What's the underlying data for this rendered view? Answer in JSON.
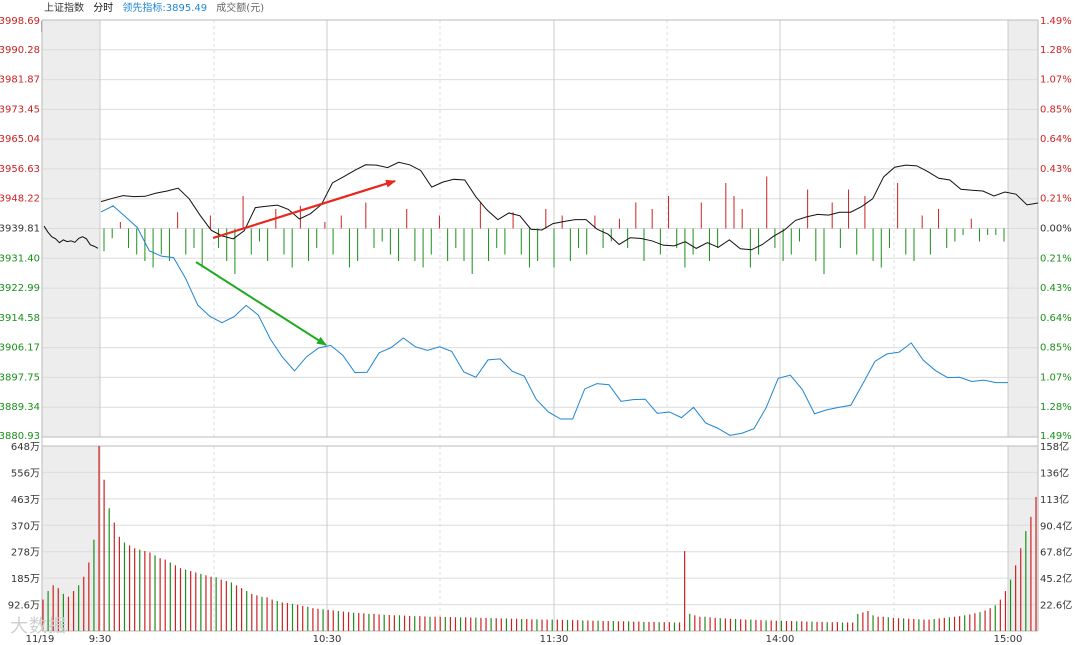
{
  "header": {
    "title": "上证指数",
    "mode": "分时",
    "lead_label": "领先指标:",
    "lead_value": "3895.49",
    "volume_label": "成交额(元)"
  },
  "logo_text": "大数据",
  "colors": {
    "up": "#cc2222",
    "down": "#1a8f1a",
    "price_line": "#111111",
    "lead_line": "#1f86d1",
    "grid": "#dcdcdc",
    "shade": "#ededed",
    "arrow_up": "#e8281e",
    "arrow_down": "#22aa22"
  },
  "chart_data": {
    "type": "line",
    "x_labels": [
      "11/19",
      "9:30",
      "10:30",
      "11:30",
      "14:00",
      "15:00"
    ],
    "price_axis": {
      "labels": [
        "3998.69",
        "3990.28",
        "3981.87",
        "3973.45",
        "3965.04",
        "3956.63",
        "3948.22",
        "3939.81",
        "3931.40",
        "3922.99",
        "3914.58",
        "3906.17",
        "3897.75",
        "3889.34",
        "3880.93"
      ],
      "range": [
        3880.93,
        3998.69
      ],
      "prev_close": 3939.81
    },
    "pct_axis": {
      "labels": [
        "1.49%",
        "1.28%",
        "1.07%",
        "0.85%",
        "0.64%",
        "0.43%",
        "0.21%",
        "0.00%",
        "0.21%",
        "0.43%",
        "0.64%",
        "0.85%",
        "1.07%",
        "1.28%",
        "1.49%"
      ]
    },
    "volume_axis": {
      "left_labels": [
        "648万",
        "556万",
        "463万",
        "370万",
        "278万",
        "185万",
        "92.6万"
      ],
      "right_labels": [
        "158亿",
        "136亿",
        "113亿",
        "90.4亿",
        "67.8亿",
        "45.2亿",
        "22.6亿"
      ],
      "max": 648
    },
    "prev_day_price": [
      3940.5,
      3938.8,
      3937.5,
      3936.9,
      3935.8,
      3936.6,
      3936.1,
      3936.3,
      3935.9,
      3937.0,
      3937.5,
      3936.9,
      3935.2,
      3934.8,
      3934.2
    ],
    "price": [
      3947.4,
      3948.3,
      3949.1,
      3948.8,
      3948.9,
      3949.8,
      3950.4,
      3951.2,
      3948.2,
      3943.5,
      3939.3,
      3937.7,
      3936.9,
      3939.2,
      3945.7,
      3946.1,
      3946.4,
      3945.2,
      3942.5,
      3944.0,
      3946.6,
      3952.7,
      3954.4,
      3956.2,
      3957.8,
      3957.7,
      3957.0,
      3958.5,
      3957.8,
      3956.2,
      3951.5,
      3952.9,
      3953.7,
      3953.5,
      3948.8,
      3945.1,
      3942.3,
      3944.2,
      3943.4,
      3939.6,
      3939.4,
      3941.2,
      3941.8,
      3942.3,
      3942.3,
      3939.6,
      3938.2,
      3935.3,
      3937.2,
      3937.0,
      3936.3,
      3935.1,
      3934.9,
      3936.1,
      3934.2,
      3935.8,
      3934.5,
      3936.6,
      3934.1,
      3933.8,
      3935.3,
      3937.6,
      3939.4,
      3942.1,
      3943.1,
      3943.8,
      3943.6,
      3944.4,
      3944.4,
      3946.0,
      3948.2,
      3954.4,
      3957.1,
      3957.7,
      3957.5,
      3955.9,
      3954.0,
      3953.5,
      3950.9,
      3950.6,
      3950.4,
      3949.0,
      3950.1,
      3949.5,
      3946.5,
      3947.0
    ],
    "lead": [
      3944.5,
      3946.2,
      3943.2,
      3940.1,
      3933.5,
      3932.0,
      3931.6,
      3925.7,
      3918.2,
      3915.0,
      3913.2,
      3914.9,
      3918.1,
      3915.4,
      3908.6,
      3903.5,
      3899.6,
      3903.6,
      3906.1,
      3906.8,
      3904.0,
      3899.1,
      3899.2,
      3904.7,
      3906.2,
      3908.9,
      3906.4,
      3905.4,
      3906.4,
      3905.1,
      3899.3,
      3897.8,
      3902.7,
      3903.0,
      3899.5,
      3898.1,
      3891.5,
      3888.0,
      3886.0,
      3886.0,
      3894.5,
      3896.0,
      3895.7,
      3891.0,
      3891.5,
      3891.6,
      3887.6,
      3888.0,
      3886.4,
      3889.3,
      3884.9,
      3883.4,
      3881.4,
      3882.0,
      3883.3,
      3889.2,
      3897.5,
      3898.4,
      3894.3,
      3887.5,
      3888.6,
      3889.3,
      3889.9,
      3896.0,
      3902.3,
      3904.4,
      3904.9,
      3907.5,
      3902.6,
      3899.7,
      3897.7,
      3897.8,
      3896.6,
      3897.0,
      3896.3,
      3896.3
    ],
    "diff_bars": [
      -3.5,
      -1.5,
      1,
      -3,
      -4,
      -5,
      -6,
      -4,
      -5,
      2.5,
      -4,
      -3,
      -6,
      2,
      -3,
      -5,
      -7,
      5,
      -4,
      -2,
      -5,
      3,
      -4,
      -6,
      3.5,
      -5,
      -3,
      1,
      -4,
      2,
      -6,
      -5,
      4,
      -3,
      -2,
      -4,
      -5,
      3,
      -5,
      -6,
      -4,
      2,
      -5,
      -3,
      -5,
      -7,
      4,
      -5,
      -3,
      -4,
      2.5,
      -4,
      -6,
      -5,
      3,
      -6,
      2,
      -5,
      -3,
      -4,
      2,
      -3,
      -2,
      1.5,
      -3,
      4,
      -5,
      3,
      -4,
      5,
      -3,
      -6,
      -4,
      4,
      -5,
      -3,
      7,
      5,
      3,
      -6,
      -4,
      8,
      -3,
      -5,
      -4,
      -2,
      6,
      -5,
      -7,
      4,
      -3,
      6,
      -4,
      5,
      -5,
      -6,
      -3,
      7,
      -4,
      -5,
      2,
      -4,
      3,
      -3,
      -2,
      -1,
      1.5,
      -2,
      -1,
      -1,
      -2
    ],
    "volume": [
      110,
      140,
      160,
      150,
      130,
      120,
      140,
      160,
      190,
      240,
      320,
      648,
      530,
      430,
      380,
      330,
      310,
      300,
      290,
      285,
      280,
      275,
      265,
      255,
      250,
      240,
      230,
      220,
      215,
      210,
      205,
      200,
      195,
      190,
      188,
      180,
      175,
      170,
      160,
      150,
      140,
      130,
      125,
      120,
      118,
      110,
      105,
      100,
      98,
      95,
      92,
      88,
      85,
      80,
      78,
      76,
      74,
      72,
      70,
      68,
      66,
      64,
      63,
      62,
      60,
      60,
      58,
      57,
      56,
      55,
      55,
      54,
      53,
      52,
      52,
      51,
      50,
      50,
      50,
      49,
      49,
      48,
      48,
      48,
      47,
      47,
      46,
      46,
      45,
      45,
      44,
      44,
      43,
      43,
      42,
      42,
      41,
      41,
      40,
      40,
      40,
      40,
      39,
      39,
      38,
      38,
      37,
      37,
      36,
      36,
      35,
      35,
      35,
      34,
      34,
      34,
      33,
      33,
      32,
      32,
      32,
      31,
      31,
      31,
      30,
      30,
      280,
      60,
      55,
      50,
      50,
      48,
      46,
      45,
      44,
      43,
      42,
      41,
      40,
      40,
      39,
      38,
      37,
      37,
      36,
      36,
      35,
      35,
      34,
      34,
      33,
      33,
      32,
      32,
      31,
      31,
      31,
      30,
      30,
      30,
      60,
      65,
      70,
      55,
      50,
      50,
      48,
      46,
      45,
      44,
      43,
      42,
      41,
      40,
      40,
      42,
      44,
      46,
      48,
      50,
      52,
      55,
      58,
      62,
      66,
      72,
      80,
      90,
      110,
      140,
      180,
      230,
      290,
      350,
      400,
      470
    ]
  }
}
